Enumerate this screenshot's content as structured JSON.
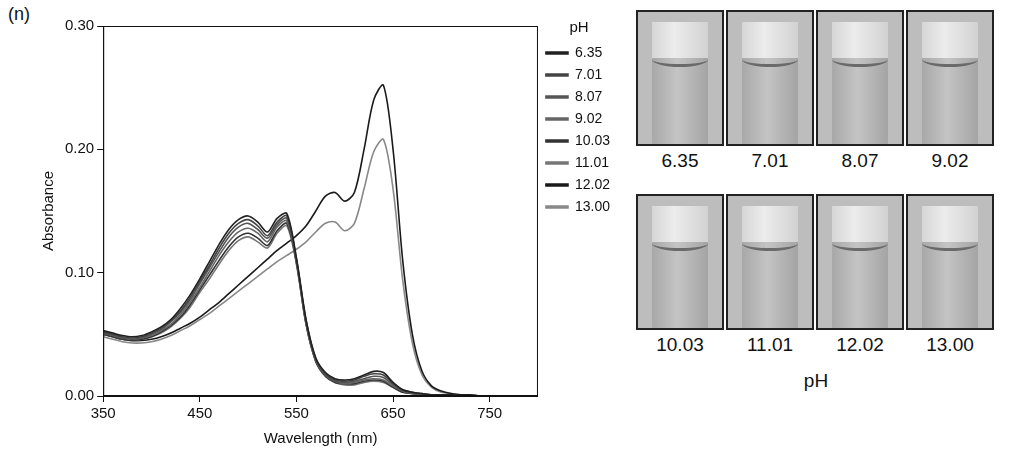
{
  "panel_label": "(n)",
  "chart_data": {
    "type": "line",
    "x_label": "Wavelength (nm)",
    "y_label": "Absorbance",
    "x": [
      350,
      360,
      370,
      380,
      390,
      400,
      410,
      420,
      430,
      440,
      450,
      460,
      470,
      480,
      490,
      500,
      510,
      520,
      530,
      540,
      550,
      560,
      570,
      580,
      590,
      600,
      610,
      620,
      630,
      640,
      650,
      660,
      670,
      680,
      690,
      700,
      710,
      720,
      730,
      740,
      750,
      760,
      770,
      780,
      790,
      800
    ],
    "series": [
      {
        "name": "6.35",
        "color": "#222222",
        "values": [
          0.053,
          0.051,
          0.049,
          0.048,
          0.049,
          0.052,
          0.056,
          0.062,
          0.071,
          0.082,
          0.095,
          0.109,
          0.123,
          0.135,
          0.143,
          0.146,
          0.141,
          0.133,
          0.144,
          0.148,
          0.112,
          0.062,
          0.031,
          0.019,
          0.014,
          0.013,
          0.014,
          0.017,
          0.02,
          0.019,
          0.011,
          0.005,
          0.003,
          0.002,
          0.001,
          0.001,
          0.001,
          0,
          0,
          0,
          0,
          0,
          0,
          0,
          0,
          0
        ]
      },
      {
        "name": "7.01",
        "color": "#444444",
        "values": [
          0.052,
          0.05,
          0.048,
          0.047,
          0.048,
          0.051,
          0.055,
          0.061,
          0.069,
          0.08,
          0.093,
          0.106,
          0.12,
          0.132,
          0.14,
          0.143,
          0.138,
          0.13,
          0.141,
          0.146,
          0.111,
          0.061,
          0.03,
          0.018,
          0.013,
          0.012,
          0.013,
          0.016,
          0.018,
          0.017,
          0.01,
          0.005,
          0.003,
          0.002,
          0.001,
          0.001,
          0.001,
          0,
          0,
          0,
          0,
          0,
          0,
          0,
          0,
          0
        ]
      },
      {
        "name": "8.07",
        "color": "#555555",
        "values": [
          0.051,
          0.049,
          0.047,
          0.046,
          0.047,
          0.05,
          0.054,
          0.06,
          0.068,
          0.078,
          0.091,
          0.104,
          0.117,
          0.129,
          0.137,
          0.14,
          0.135,
          0.128,
          0.139,
          0.144,
          0.11,
          0.06,
          0.029,
          0.017,
          0.012,
          0.011,
          0.012,
          0.014,
          0.016,
          0.015,
          0.009,
          0.004,
          0.002,
          0.001,
          0.001,
          0.001,
          0,
          0,
          0,
          0,
          0,
          0,
          0,
          0,
          0,
          0
        ]
      },
      {
        "name": "9.02",
        "color": "#666666",
        "values": [
          0.051,
          0.049,
          0.047,
          0.046,
          0.047,
          0.049,
          0.053,
          0.058,
          0.066,
          0.076,
          0.088,
          0.101,
          0.114,
          0.125,
          0.133,
          0.136,
          0.132,
          0.125,
          0.137,
          0.142,
          0.109,
          0.059,
          0.029,
          0.017,
          0.012,
          0.01,
          0.011,
          0.013,
          0.014,
          0.013,
          0.008,
          0.004,
          0.002,
          0.001,
          0.001,
          0,
          0,
          0,
          0,
          0,
          0,
          0,
          0,
          0,
          0,
          0
        ]
      },
      {
        "name": "10.03",
        "color": "#333333",
        "values": [
          0.05,
          0.048,
          0.046,
          0.045,
          0.046,
          0.048,
          0.052,
          0.057,
          0.064,
          0.074,
          0.086,
          0.098,
          0.11,
          0.121,
          0.129,
          0.132,
          0.128,
          0.122,
          0.134,
          0.14,
          0.108,
          0.058,
          0.028,
          0.016,
          0.011,
          0.01,
          0.01,
          0.012,
          0.013,
          0.012,
          0.007,
          0.003,
          0.002,
          0.001,
          0.001,
          0,
          0,
          0,
          0,
          0,
          0,
          0,
          0,
          0,
          0,
          0
        ]
      },
      {
        "name": "11.01",
        "color": "#777777",
        "values": [
          0.05,
          0.048,
          0.046,
          0.045,
          0.046,
          0.048,
          0.051,
          0.056,
          0.063,
          0.072,
          0.084,
          0.095,
          0.107,
          0.118,
          0.126,
          0.129,
          0.125,
          0.12,
          0.132,
          0.138,
          0.107,
          0.058,
          0.028,
          0.016,
          0.011,
          0.009,
          0.009,
          0.011,
          0.012,
          0.011,
          0.007,
          0.003,
          0.002,
          0.001,
          0.001,
          0,
          0,
          0,
          0,
          0,
          0,
          0,
          0,
          0,
          0,
          0
        ]
      },
      {
        "name": "12.02",
        "color": "#1a1a1a",
        "values": [
          0.05,
          0.048,
          0.046,
          0.045,
          0.045,
          0.046,
          0.048,
          0.051,
          0.055,
          0.059,
          0.064,
          0.07,
          0.076,
          0.083,
          0.09,
          0.097,
          0.104,
          0.111,
          0.118,
          0.124,
          0.13,
          0.138,
          0.15,
          0.162,
          0.165,
          0.158,
          0.165,
          0.2,
          0.24,
          0.252,
          0.2,
          0.11,
          0.05,
          0.02,
          0.008,
          0.004,
          0.002,
          0.001,
          0.001,
          0,
          0,
          0,
          0,
          0,
          0,
          0
        ]
      },
      {
        "name": "13.00",
        "color": "#888888",
        "values": [
          0.048,
          0.046,
          0.044,
          0.043,
          0.043,
          0.044,
          0.046,
          0.049,
          0.053,
          0.057,
          0.062,
          0.067,
          0.073,
          0.079,
          0.085,
          0.091,
          0.097,
          0.103,
          0.109,
          0.114,
          0.119,
          0.125,
          0.133,
          0.14,
          0.141,
          0.134,
          0.14,
          0.168,
          0.198,
          0.208,
          0.168,
          0.094,
          0.043,
          0.017,
          0.007,
          0.003,
          0.002,
          0.001,
          0.001,
          0,
          0,
          0,
          0,
          0,
          0,
          0
        ]
      }
    ],
    "xlim": [
      350,
      800
    ],
    "xticks": [
      350,
      450,
      550,
      650,
      750
    ],
    "ylim": [
      0,
      0.3
    ],
    "yticks": [
      {
        "value": 0,
        "label": "0.00"
      },
      {
        "value": 0.1,
        "label": "0.10"
      },
      {
        "value": 0.2,
        "label": "0.20"
      },
      {
        "value": 0.3,
        "label": "0.30"
      }
    ],
    "grid": false,
    "legend": "right",
    "legend_title": "pH"
  },
  "photos": {
    "labels": [
      "6.35",
      "7.01",
      "8.07",
      "9.02",
      "10.03",
      "11.01",
      "12.02",
      "13.00"
    ],
    "x_label": "pH"
  }
}
